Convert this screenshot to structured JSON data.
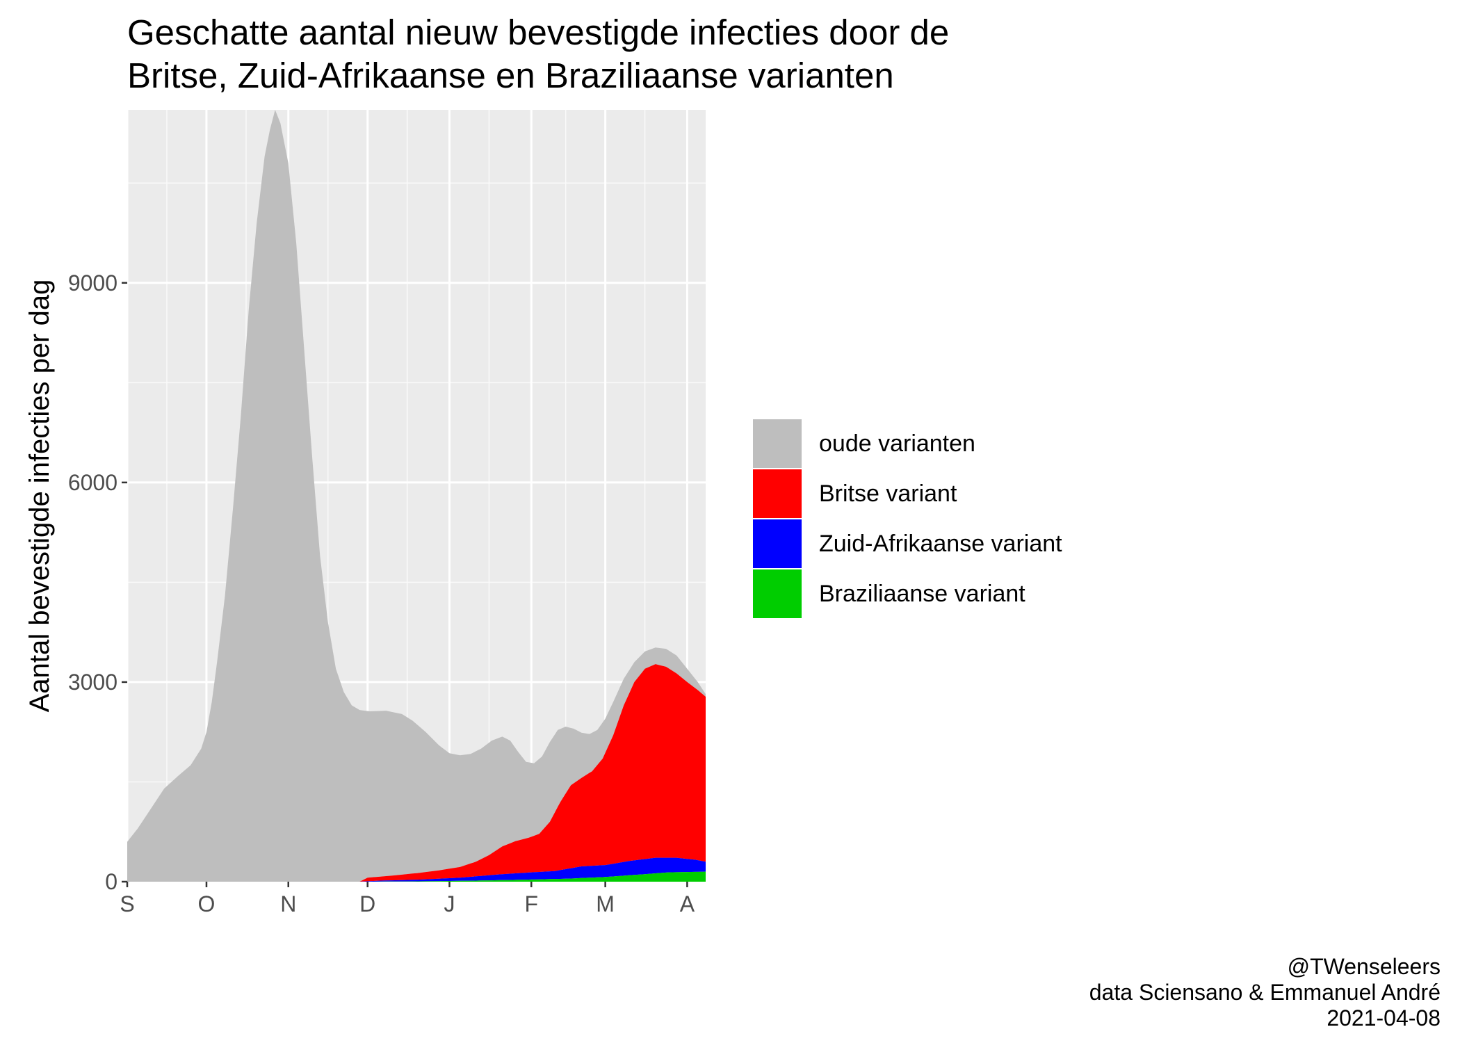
{
  "chart_data": {
    "type": "area",
    "stacked": true,
    "title_lines": [
      "Geschatte aantal nieuw bevestigde infecties door de",
      "Britse, Zuid-Afrikaanse en Braziliaanse varianten"
    ],
    "ylabel": "Aantal bevestigde infecties per dag",
    "xlabel": "",
    "ylim": [
      0,
      11600
    ],
    "y_ticks": [
      0,
      3000,
      6000,
      9000
    ],
    "y_minor_ticks": [
      1500,
      4500,
      7500,
      10500
    ],
    "x_range": [
      "2020-09-01",
      "2021-04-08"
    ],
    "x_ticks": [
      {
        "label": "S",
        "date": "2020-09-01"
      },
      {
        "label": "O",
        "date": "2020-10-01"
      },
      {
        "label": "N",
        "date": "2020-11-01"
      },
      {
        "label": "D",
        "date": "2020-12-01"
      },
      {
        "label": "J",
        "date": "2021-01-01"
      },
      {
        "label": "F",
        "date": "2021-02-01"
      },
      {
        "label": "M",
        "date": "2021-03-01"
      },
      {
        "label": "A",
        "date": "2021-04-01"
      }
    ],
    "x_minor_ticks": [
      "2020-09-16",
      "2020-10-16",
      "2020-11-16",
      "2020-12-16",
      "2021-01-16",
      "2021-02-14",
      "2021-03-16"
    ],
    "grid": true,
    "legend_position": "right",
    "legend_title": "",
    "series": [
      {
        "name": "oude varianten",
        "color": "#bebebe",
        "points": [
          [
            "2020-09-01",
            600
          ],
          [
            "2020-09-05",
            800
          ],
          [
            "2020-09-10",
            1100
          ],
          [
            "2020-09-15",
            1400
          ],
          [
            "2020-09-20",
            1580
          ],
          [
            "2020-09-25",
            1750
          ],
          [
            "2020-09-29",
            2000
          ],
          [
            "2020-10-01",
            2250
          ],
          [
            "2020-10-03",
            2700
          ],
          [
            "2020-10-05",
            3300
          ],
          [
            "2020-10-08",
            4300
          ],
          [
            "2020-10-11",
            5600
          ],
          [
            "2020-10-14",
            7000
          ],
          [
            "2020-10-17",
            8600
          ],
          [
            "2020-10-20",
            9900
          ],
          [
            "2020-10-23",
            10900
          ],
          [
            "2020-10-25",
            11300
          ],
          [
            "2020-10-27",
            11600
          ],
          [
            "2020-10-29",
            11400
          ],
          [
            "2020-11-01",
            10800
          ],
          [
            "2020-11-04",
            9600
          ],
          [
            "2020-11-07",
            8000
          ],
          [
            "2020-11-10",
            6400
          ],
          [
            "2020-11-13",
            4900
          ],
          [
            "2020-11-16",
            3900
          ],
          [
            "2020-11-19",
            3200
          ],
          [
            "2020-11-22",
            2850
          ],
          [
            "2020-11-25",
            2650
          ],
          [
            "2020-11-28",
            2580
          ],
          [
            "2020-12-02",
            2560
          ],
          [
            "2020-12-08",
            2570
          ],
          [
            "2020-12-14",
            2520
          ],
          [
            "2020-12-18",
            2420
          ],
          [
            "2020-12-23",
            2250
          ],
          [
            "2020-12-28",
            2050
          ],
          [
            "2021-01-01",
            1930
          ],
          [
            "2021-01-05",
            1900
          ],
          [
            "2021-01-09",
            1920
          ],
          [
            "2021-01-13",
            2000
          ],
          [
            "2021-01-17",
            2120
          ],
          [
            "2021-01-21",
            2180
          ],
          [
            "2021-01-24",
            2120
          ],
          [
            "2021-01-27",
            1950
          ],
          [
            "2021-01-30",
            1800
          ],
          [
            "2021-02-02",
            1780
          ],
          [
            "2021-02-05",
            1880
          ],
          [
            "2021-02-08",
            2100
          ],
          [
            "2021-02-11",
            2280
          ],
          [
            "2021-02-14",
            2330
          ],
          [
            "2021-02-17",
            2300
          ],
          [
            "2021-02-20",
            2240
          ],
          [
            "2021-02-23",
            2220
          ],
          [
            "2021-02-26",
            2280
          ],
          [
            "2021-03-01",
            2450
          ],
          [
            "2021-03-04",
            2700
          ],
          [
            "2021-03-08",
            3050
          ],
          [
            "2021-03-12",
            3300
          ],
          [
            "2021-03-16",
            3460
          ],
          [
            "2021-03-20",
            3520
          ],
          [
            "2021-03-24",
            3500
          ],
          [
            "2021-03-28",
            3400
          ],
          [
            "2021-04-01",
            3200
          ],
          [
            "2021-04-05",
            3000
          ],
          [
            "2021-04-08",
            2820
          ]
        ]
      },
      {
        "name": "Britse variant",
        "color": "#ff0000",
        "points": [
          [
            "2020-09-01",
            0
          ],
          [
            "2020-11-28",
            0
          ],
          [
            "2020-12-01",
            60
          ],
          [
            "2020-12-10",
            90
          ],
          [
            "2020-12-20",
            130
          ],
          [
            "2020-12-28",
            170
          ],
          [
            "2021-01-05",
            220
          ],
          [
            "2021-01-11",
            300
          ],
          [
            "2021-01-16",
            400
          ],
          [
            "2021-01-21",
            530
          ],
          [
            "2021-01-26",
            610
          ],
          [
            "2021-01-31",
            660
          ],
          [
            "2021-02-04",
            720
          ],
          [
            "2021-02-08",
            900
          ],
          [
            "2021-02-12",
            1200
          ],
          [
            "2021-02-16",
            1450
          ],
          [
            "2021-02-20",
            1560
          ],
          [
            "2021-02-24",
            1660
          ],
          [
            "2021-02-28",
            1850
          ],
          [
            "2021-03-04",
            2200
          ],
          [
            "2021-03-08",
            2650
          ],
          [
            "2021-03-12",
            3000
          ],
          [
            "2021-03-16",
            3200
          ],
          [
            "2021-03-20",
            3270
          ],
          [
            "2021-03-24",
            3230
          ],
          [
            "2021-03-28",
            3130
          ],
          [
            "2021-04-01",
            3000
          ],
          [
            "2021-04-05",
            2880
          ],
          [
            "2021-04-08",
            2780
          ]
        ]
      },
      {
        "name": "Zuid-Afrikaanse variant",
        "color": "#0000ff",
        "points": [
          [
            "2020-09-01",
            0
          ],
          [
            "2020-11-28",
            0
          ],
          [
            "2020-12-05",
            15
          ],
          [
            "2020-12-20",
            30
          ],
          [
            "2021-01-05",
            60
          ],
          [
            "2021-01-20",
            110
          ],
          [
            "2021-02-01",
            140
          ],
          [
            "2021-02-10",
            160
          ],
          [
            "2021-02-20",
            230
          ],
          [
            "2021-03-01",
            250
          ],
          [
            "2021-03-10",
            310
          ],
          [
            "2021-03-20",
            360
          ],
          [
            "2021-03-28",
            360
          ],
          [
            "2021-04-04",
            330
          ],
          [
            "2021-04-08",
            300
          ]
        ]
      },
      {
        "name": "Braziliaanse variant",
        "color": "#00cd00",
        "points": [
          [
            "2020-09-01",
            0
          ],
          [
            "2020-12-01",
            0
          ],
          [
            "2020-12-20",
            5
          ],
          [
            "2021-01-10",
            15
          ],
          [
            "2021-01-30",
            30
          ],
          [
            "2021-02-15",
            45
          ],
          [
            "2021-03-01",
            70
          ],
          [
            "2021-03-15",
            110
          ],
          [
            "2021-03-25",
            140
          ],
          [
            "2021-04-08",
            150
          ]
        ]
      }
    ],
    "caption_lines": [
      "@TWenseleers",
      "data Sciensano & Emmanuel André",
      "2021-04-08"
    ]
  }
}
